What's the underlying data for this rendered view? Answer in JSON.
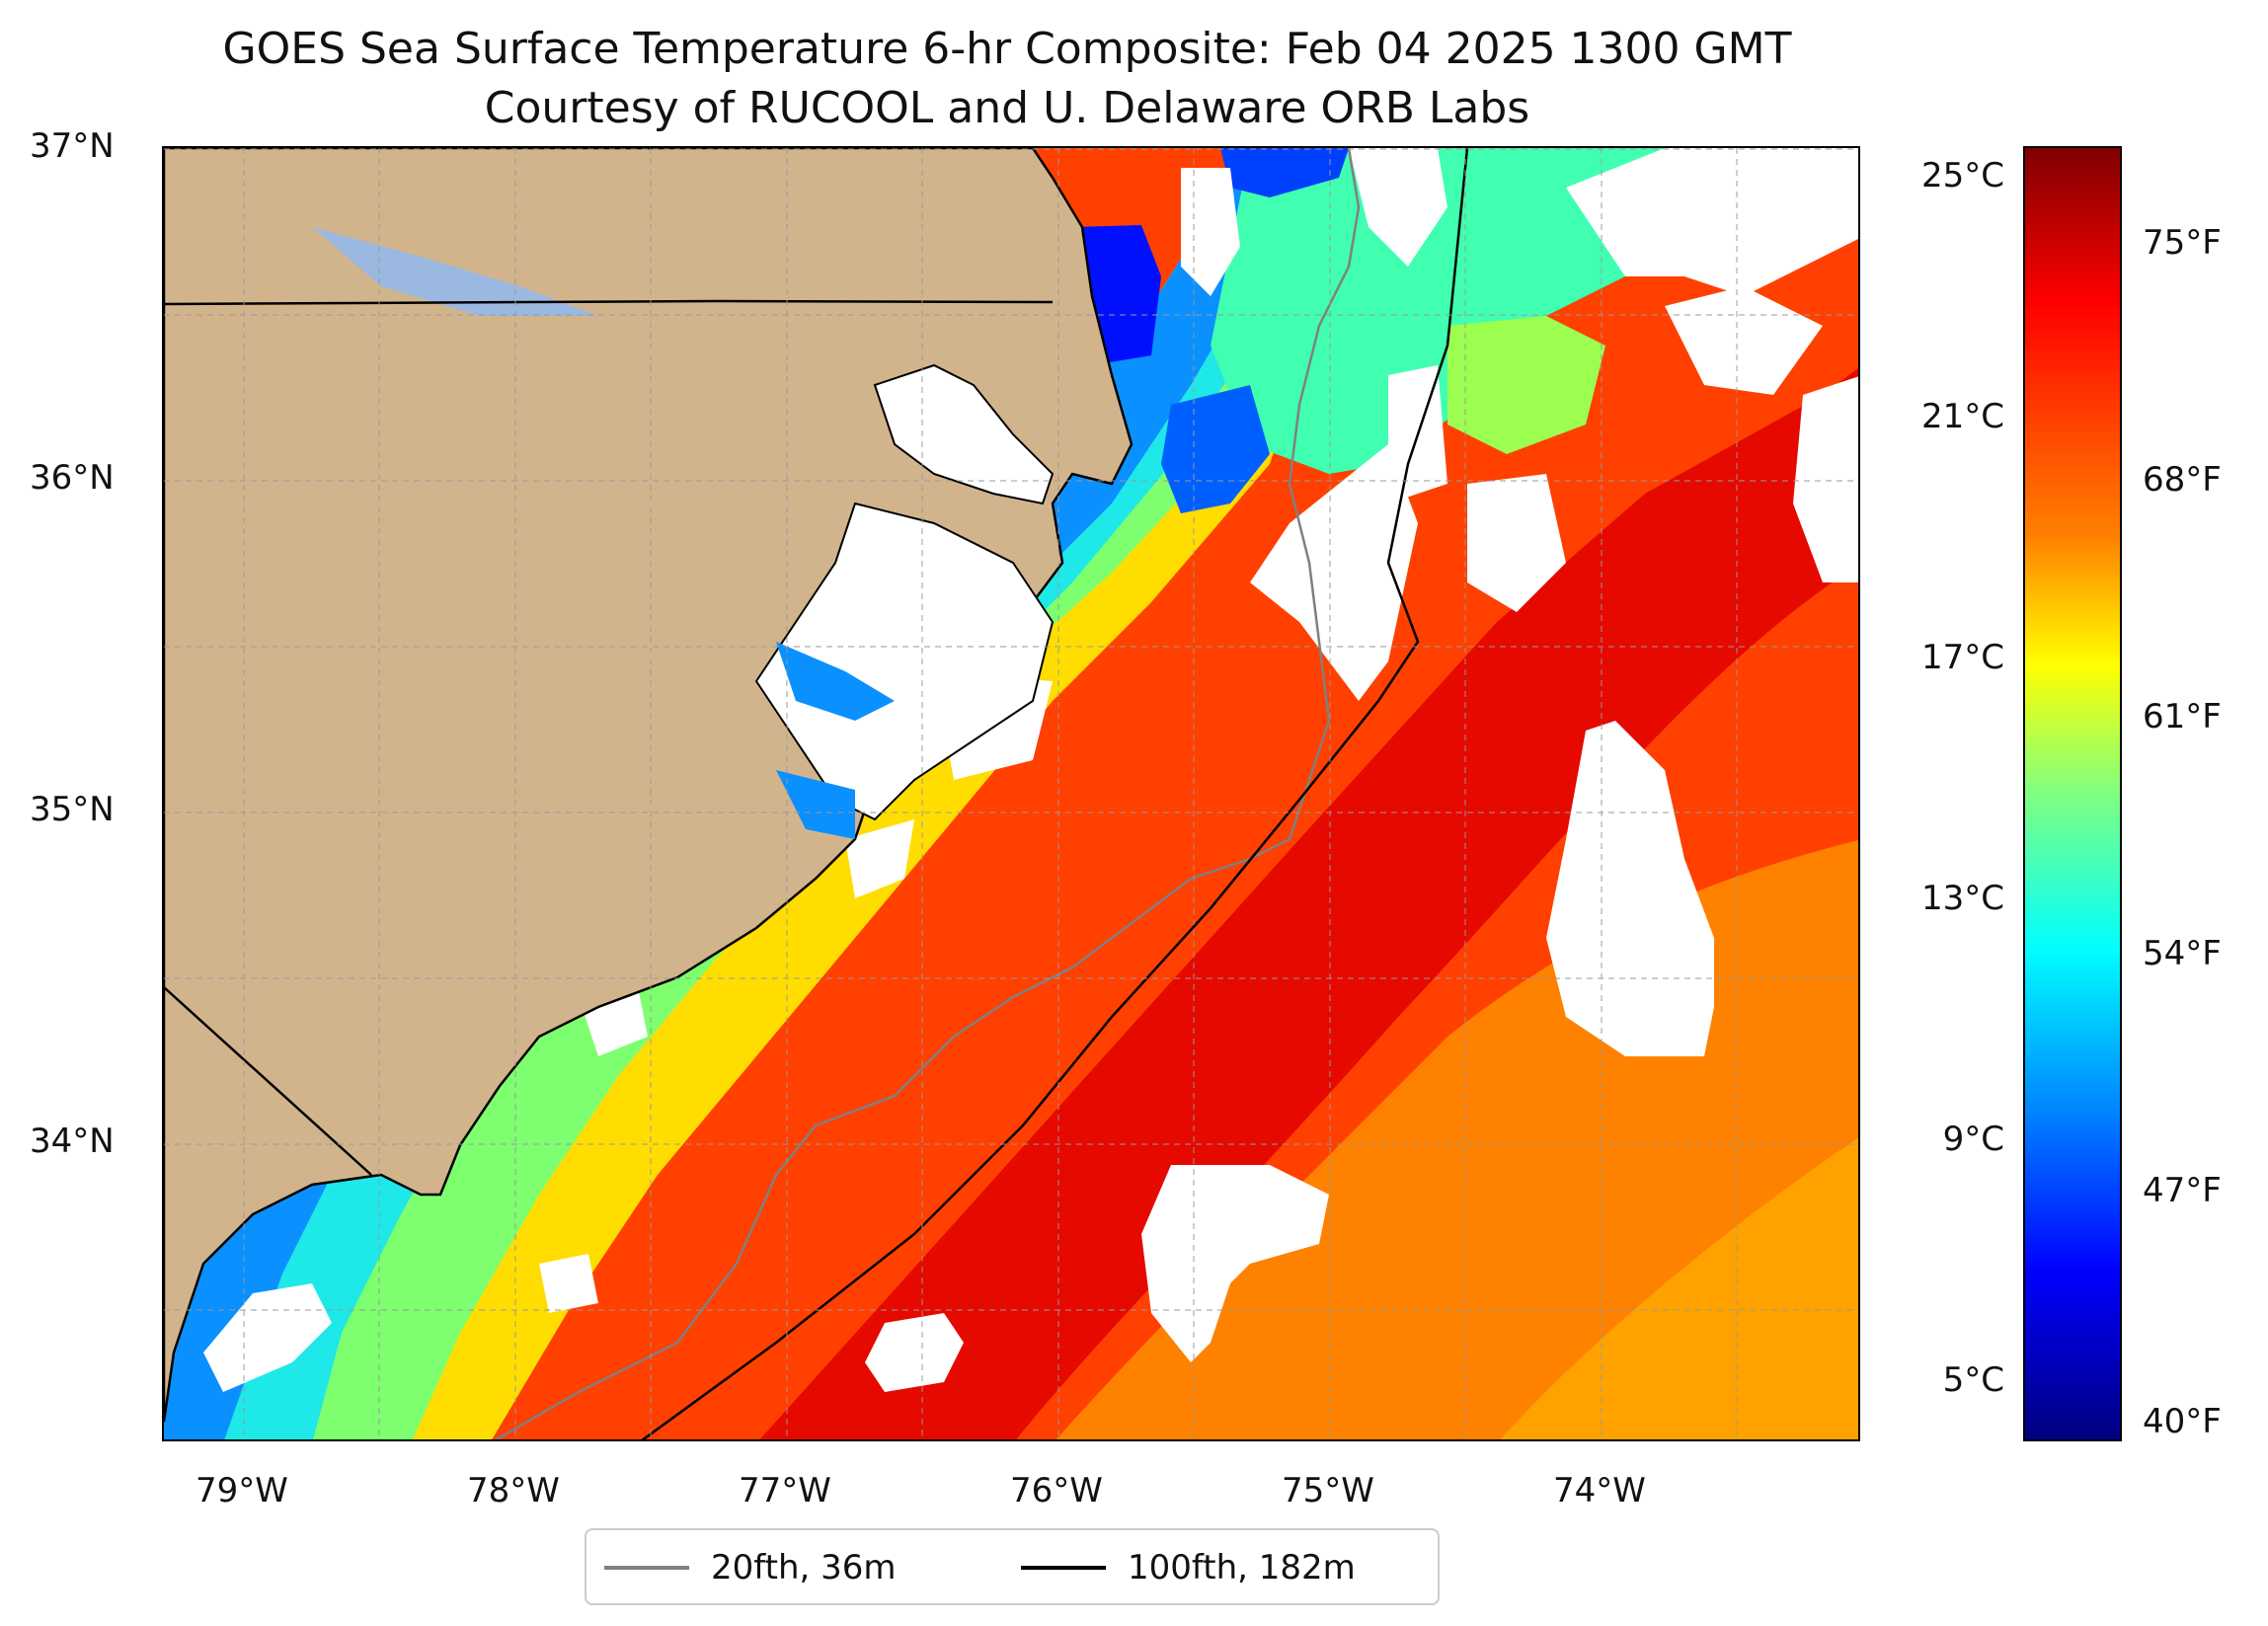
{
  "title": {
    "line1": "GOES Sea Surface Temperature 6-hr Composite: Feb 04 2025 1300 GMT",
    "line2": "Courtesy of RUCOOL and U. Delaware ORB Labs"
  },
  "map": {
    "extent": {
      "lon_min": -79.3,
      "lon_max": -73.05,
      "lat_min": 33.1,
      "lat_max": 37.0
    },
    "lat_ticks": [
      "37°N",
      "36°N",
      "35°N",
      "34°N"
    ],
    "lon_ticks": [
      "79°W",
      "78°W",
      "77°W",
      "76°W",
      "75°W",
      "74°W"
    ],
    "gridlines": true,
    "colors": {
      "land": "#d2b48c",
      "cloud_gap": "#ffffff",
      "coastline": "#000000",
      "isobath_20": "#808080",
      "isobath_100": "#000000"
    }
  },
  "colorbar": {
    "celsius_ticks": [
      "25°C",
      "21°C",
      "17°C",
      "13°C",
      "9°C",
      "5°C"
    ],
    "fahrenheit_ticks": [
      "75°F",
      "68°F",
      "61°F",
      "54°F",
      "47°F",
      "40°F"
    ],
    "colormap": "jet"
  },
  "legend": {
    "items": [
      {
        "label": "20fth, 36m",
        "color": "#808080"
      },
      {
        "label": "100fth, 182m",
        "color": "#000000"
      }
    ]
  }
}
